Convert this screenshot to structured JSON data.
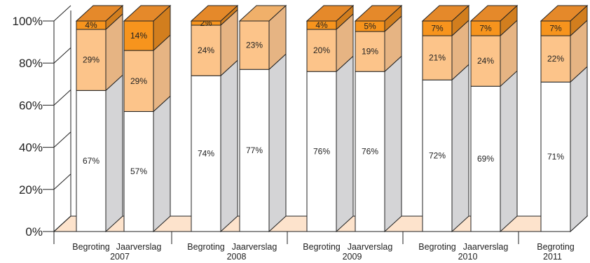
{
  "chart_data": {
    "type": "bar",
    "stacked": true,
    "style": "3d-percent-stacked",
    "title": "",
    "xlabel": "",
    "ylabel": "",
    "ylim": [
      0,
      100
    ],
    "yticks": [
      "0%",
      "20%",
      "40%",
      "60%",
      "80%",
      "100%"
    ],
    "categories": [
      {
        "label": "Begroting",
        "group": "2007"
      },
      {
        "label": "Jaarverslag",
        "group": "2007"
      },
      {
        "label": "Begroting",
        "group": "2008"
      },
      {
        "label": "Jaarverslag",
        "group": "2008"
      },
      {
        "label": "Begroting",
        "group": "2009"
      },
      {
        "label": "Jaarverslag",
        "group": "2009"
      },
      {
        "label": "Begroting",
        "group": "2010"
      },
      {
        "label": "Jaarverslag",
        "group": "2010"
      },
      {
        "label": "Begroting",
        "group": "2011"
      }
    ],
    "groups": [
      "2007",
      "2008",
      "2009",
      "2010",
      "2011"
    ],
    "series": [
      {
        "values": [
          67,
          57,
          74,
          77,
          76,
          76,
          72,
          69,
          71
        ],
        "labels": [
          "67%",
          "57%",
          "74%",
          "77%",
          "76%",
          "76%",
          "72%",
          "69%",
          "71%"
        ]
      },
      {
        "values": [
          29,
          29,
          24,
          23,
          20,
          19,
          21,
          24,
          22
        ],
        "labels": [
          "29%",
          "29%",
          "24%",
          "23%",
          "20%",
          "19%",
          "21%",
          "24%",
          "22%"
        ]
      },
      {
        "values": [
          4,
          14,
          2,
          0,
          4,
          5,
          7,
          7,
          7
        ],
        "labels": [
          "4%",
          "14%",
          "2%",
          "",
          "4%",
          "5%",
          "7%",
          "7%",
          "7%"
        ]
      }
    ],
    "colors": {
      "series": [
        "#ffffff",
        "#fcc48a",
        "#f7941d"
      ],
      "side": [
        "#d4d4d6",
        "#e6b483",
        "#d27e1e"
      ],
      "top": [
        "#f2f2f2",
        "#f0b06a",
        "#e5892a"
      ],
      "floor": "#fde3cc",
      "wall": "#ffffff",
      "outline": "#222222"
    },
    "grid": false,
    "legend": "none"
  }
}
